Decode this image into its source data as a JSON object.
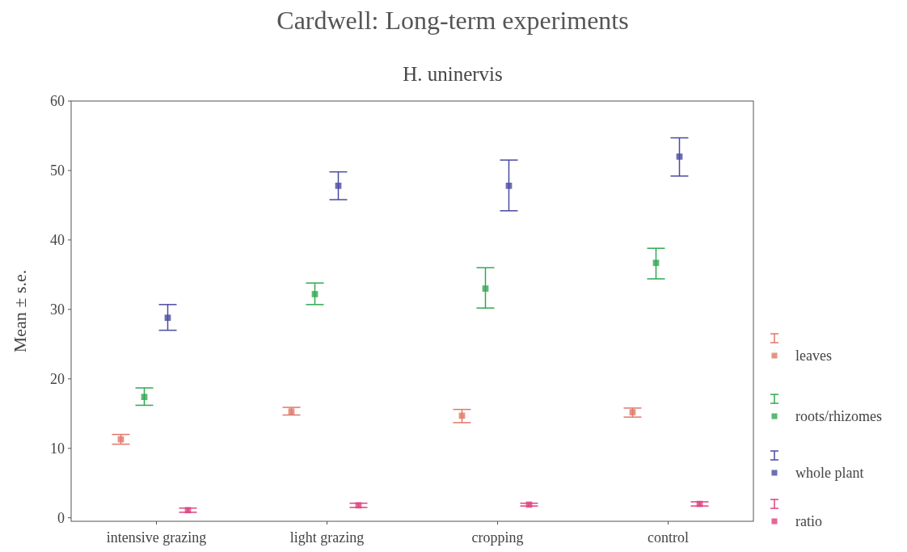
{
  "chart_data": {
    "type": "scatter",
    "title": "Cardwell: Long-term experiments",
    "subtitle": "H. uninervis",
    "ylabel": "Mean ± s.e.",
    "categories": [
      "intensive grazing",
      "light grazing",
      "cropping",
      "control"
    ],
    "series": [
      {
        "name": "leaves",
        "color": "#e07868",
        "values": [
          11.3,
          15.3,
          14.7,
          15.2
        ],
        "errors": [
          [
            10.6,
            12.0
          ],
          [
            14.8,
            15.9
          ],
          [
            13.7,
            15.6
          ],
          [
            14.5,
            15.8
          ]
        ]
      },
      {
        "name": "roots/rhizomes",
        "color": "#30a850",
        "values": [
          17.4,
          32.2,
          33.0,
          36.7
        ],
        "errors": [
          [
            16.2,
            18.7
          ],
          [
            30.7,
            33.8
          ],
          [
            30.2,
            36.0
          ],
          [
            34.4,
            38.8
          ]
        ]
      },
      {
        "name": "whole plant",
        "color": "#4a4aa0",
        "values": [
          28.8,
          47.8,
          47.8,
          52.0
        ],
        "errors": [
          [
            27.0,
            30.7
          ],
          [
            45.8,
            49.8
          ],
          [
            44.2,
            51.5
          ],
          [
            49.2,
            54.7
          ]
        ]
      },
      {
        "name": "ratio",
        "color": "#e0407f",
        "values": [
          1.1,
          1.8,
          1.9,
          2.0
        ],
        "errors": [
          [
            0.8,
            1.4
          ],
          [
            1.5,
            2.1
          ],
          [
            1.7,
            2.1
          ],
          [
            1.7,
            2.3
          ]
        ]
      }
    ],
    "ylim": [
      -0.5,
      60
    ],
    "yticks": [
      0,
      10,
      20,
      30,
      40,
      50,
      60
    ],
    "marker": "square",
    "legend": "right",
    "grid": false
  }
}
